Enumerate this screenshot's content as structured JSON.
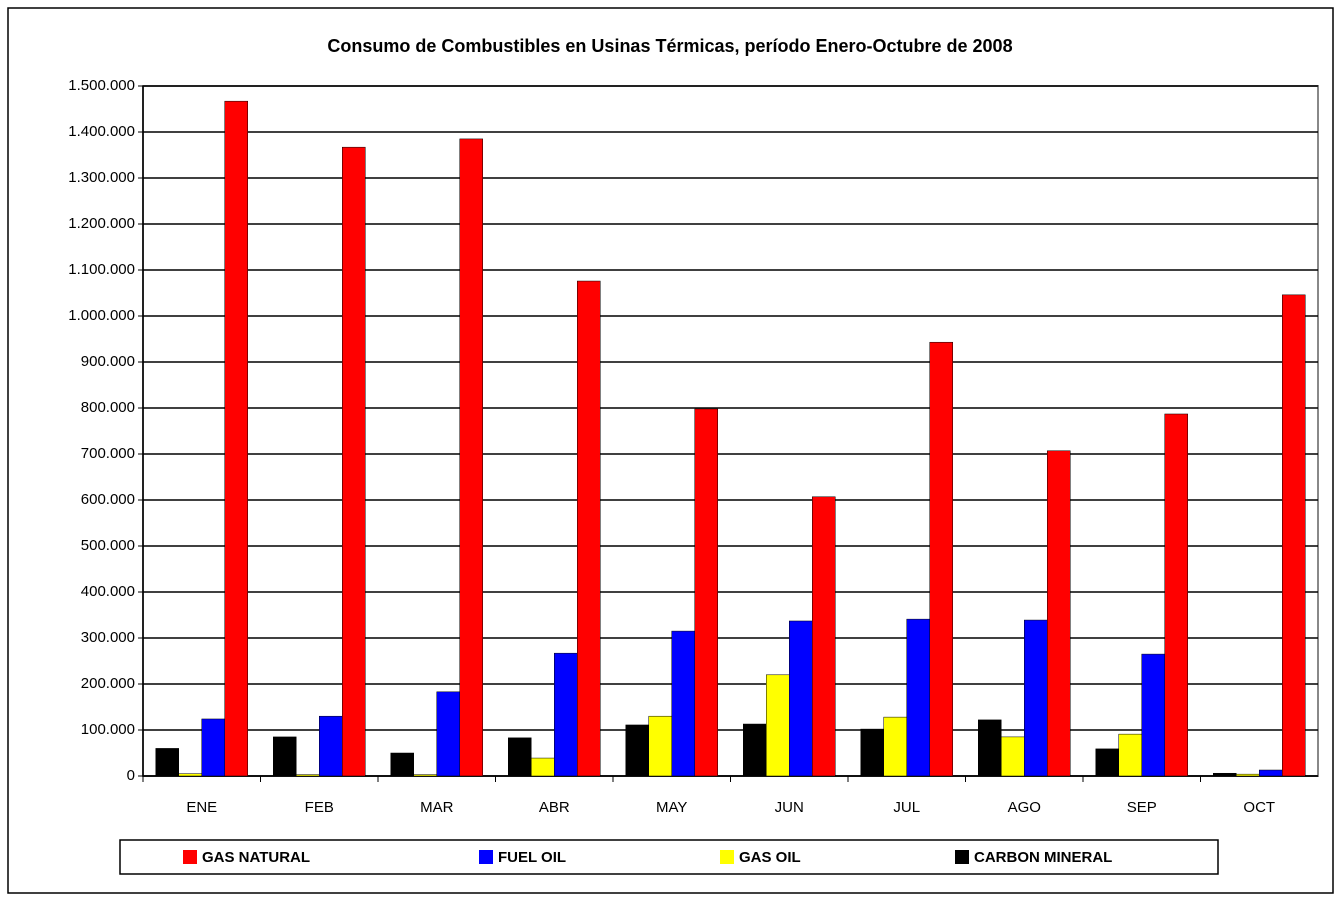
{
  "chart_data": {
    "type": "bar",
    "title": "Consumo de Combustibles en Usinas Térmicas, período Enero-Octubre de 2008",
    "categories": [
      "ENE",
      "FEB",
      "MAR",
      "ABR",
      "MAY",
      "JUN",
      "JUL",
      "AGO",
      "SEP",
      "OCT"
    ],
    "series": [
      {
        "name": "CARBON MINERAL",
        "color": "#000000",
        "values": [
          60000,
          85000,
          50000,
          83000,
          111000,
          113000,
          102000,
          122000,
          59000,
          6000
        ]
      },
      {
        "name": "GAS OIL",
        "color": "#ffff00",
        "values": [
          5000,
          3000,
          3000,
          39000,
          130000,
          220000,
          128000,
          85000,
          91000,
          4000
        ]
      },
      {
        "name": "FUEL OIL",
        "color": "#0000ff",
        "values": [
          124000,
          130000,
          183000,
          267000,
          315000,
          337000,
          341000,
          339000,
          265000,
          13000
        ]
      },
      {
        "name": "GAS NATURAL",
        "color": "#ff0000",
        "values": [
          1467000,
          1367000,
          1385000,
          1076000,
          798000,
          607000,
          943000,
          707000,
          787000,
          1046000
        ]
      }
    ],
    "legend_order": [
      "GAS NATURAL",
      "FUEL OIL",
      "GAS OIL",
      "CARBON MINERAL"
    ],
    "ylim": [
      0,
      1500000
    ],
    "yticks": [
      0,
      {
        "value": 100000,
        "label": "100.000"
      },
      {
        "value": 200000,
        "label": "200.000"
      },
      {
        "value": 300000,
        "label": "300.000"
      },
      {
        "value": 400000,
        "label": "400.000"
      },
      {
        "value": 500000,
        "label": "500.000"
      },
      {
        "value": 600000,
        "label": "600.000"
      },
      {
        "value": 700000,
        "label": "700.000"
      },
      {
        "value": 800000,
        "label": "800.000"
      },
      {
        "value": 900000,
        "label": "900.000"
      },
      {
        "value": 1000000,
        "label": "1.000.000"
      },
      {
        "value": 1100000,
        "label": "1.100.000"
      },
      {
        "value": 1200000,
        "label": "1.200.000"
      },
      {
        "value": 1300000,
        "label": "1.300.000"
      },
      {
        "value": 1400000,
        "label": "1.400.000"
      },
      {
        "value": 1500000,
        "label": "1.500.000"
      }
    ],
    "grid": true,
    "legend": "bottom"
  }
}
